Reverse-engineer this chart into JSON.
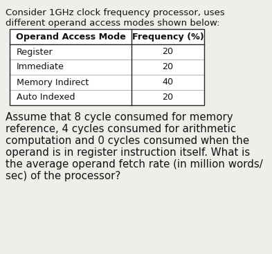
{
  "intro_text_line1": "Consider 1GHz clock frequency processor, uses",
  "intro_text_line2": "different operand access modes shown below:",
  "table_headers": [
    "Operand Access Mode",
    "Frequency (%)"
  ],
  "table_rows": [
    [
      "Register",
      "20"
    ],
    [
      "Immediate",
      "20"
    ],
    [
      "Memory Indirect",
      "40"
    ],
    [
      "Auto Indexed",
      "20"
    ]
  ],
  "footer_lines": [
    "Assume that 8 cycle consumed for memory",
    "reference, 4 cycles consumed for arithmetic",
    "computation and 0 cycles consumed when the",
    "operand is in register instruction itself. What is",
    "the average operand fetch rate (in million words/",
    "sec) of the processor?"
  ],
  "bg_color": "#f0eeea",
  "text_color": "#111111",
  "table_border_color": "#222222",
  "intro_fontsize": 9.5,
  "header_fontsize": 9.2,
  "row_fontsize": 9.2,
  "footer_fontsize": 10.8
}
